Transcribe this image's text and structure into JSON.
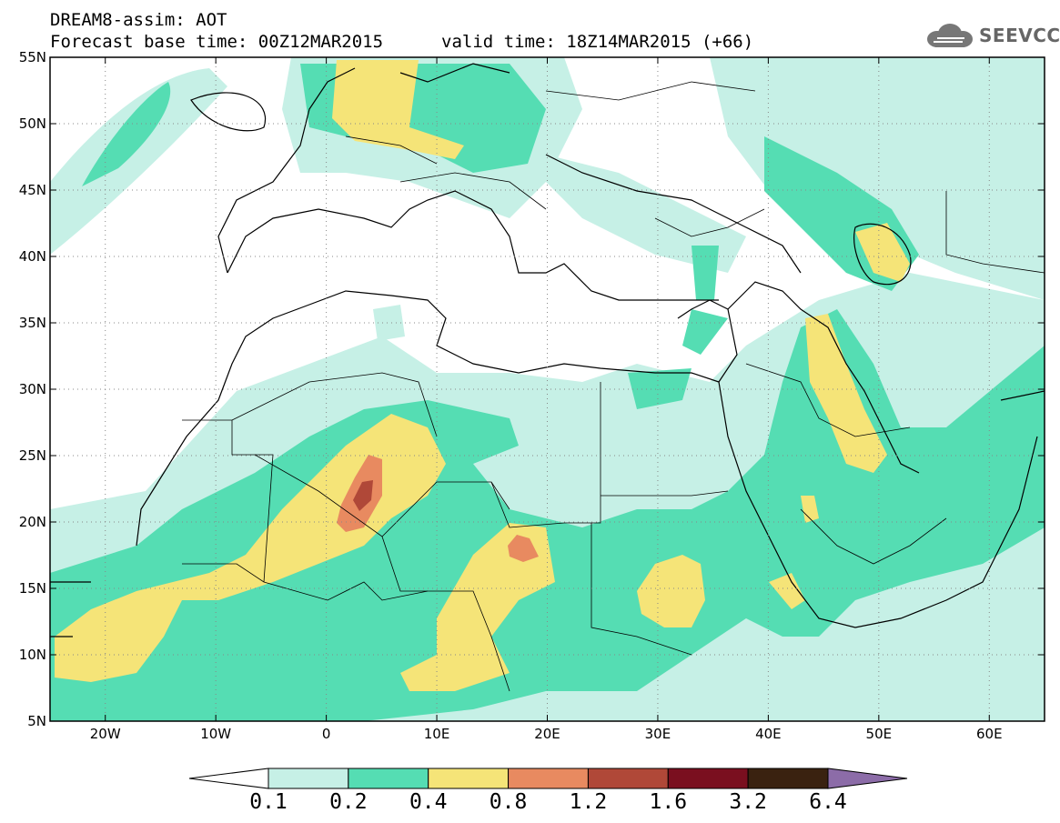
{
  "header": {
    "model_title": "DREAM8-assim: AOT",
    "base_time": "Forecast base time: 00Z12MAR2015",
    "valid_time": "valid time: 18Z14MAR2015 (+66)"
  },
  "logo": {
    "text": "SEEVCCC",
    "icon": "cloud-logo-icon"
  },
  "map": {
    "lat_labels": [
      "55N",
      "50N",
      "45N",
      "40N",
      "35N",
      "30N",
      "25N",
      "20N",
      "15N",
      "10N",
      "5N"
    ],
    "lon_labels": [
      "20W",
      "10W",
      "0",
      "10E",
      "20E",
      "30E",
      "40E",
      "50E",
      "60E"
    ],
    "lon_range": [
      -25,
      65
    ],
    "lat_range": [
      5,
      55
    ],
    "gridlines": "dotted"
  },
  "colorbar": {
    "labels": [
      "0.1",
      "0.2",
      "0.4",
      "0.8",
      "1.2",
      "1.6",
      "3.2",
      "6.4"
    ],
    "colors": [
      "#ffffff",
      "#c6f0e6",
      "#55ddb3",
      "#f5e478",
      "#e88a60",
      "#b04838",
      "#7a0f1f",
      "#3a2210",
      "#8c6ca8"
    ]
  },
  "colors": {
    "c1": "#c6f0e6",
    "c2": "#55ddb3",
    "c3": "#f5e478",
    "c4": "#e88a60",
    "c5": "#b04838"
  }
}
